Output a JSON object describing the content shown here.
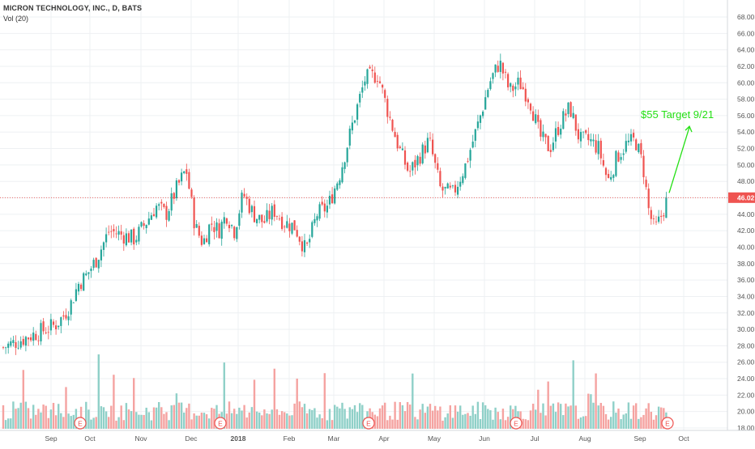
{
  "legend": {
    "title": "MICRON TECHNOLOGY, INC., D, BATS",
    "volume": "Vol (20)"
  },
  "colors": {
    "up": "#26a69a",
    "down": "#ef5350",
    "up_volume": "#8fd0c8",
    "down_volume": "#f5a3a1",
    "annotation": "#24e014",
    "price_line": "#ef5350",
    "grid": "#eef0f3",
    "axis_text": "#555555"
  },
  "chart_data": {
    "type": "candlestick",
    "symbol": "MICRON TECHNOLOGY, INC., D, BATS",
    "indicator": "Vol (20)",
    "x_labels": [
      "Sep",
      "Oct",
      "Nov",
      "Dec",
      "2018",
      "Feb",
      "Mar",
      "Apr",
      "May",
      "Jun",
      "Jul",
      "Aug",
      "Sep",
      "Oct"
    ],
    "y_ticks": [
      "18.00",
      "20.00",
      "22.00",
      "24.00",
      "26.00",
      "28.00",
      "30.00",
      "32.00",
      "34.00",
      "36.00",
      "38.00",
      "40.00",
      "42.00",
      "44.00",
      "46.00",
      "48.00",
      "50.00",
      "52.00",
      "54.00",
      "56.00",
      "58.00",
      "60.00",
      "62.00",
      "64.00",
      "66.00",
      "68.00"
    ],
    "ylim": [
      18,
      68
    ],
    "last_price": "46.02",
    "earnings_marker": "E",
    "earnings_months": [
      "Oct",
      "Dec",
      "Mar",
      "Jun",
      "Sep"
    ],
    "annotation": "$55 Target 9/21",
    "price_path": [
      [
        "Aug",
        27.8
      ],
      [
        "Sep",
        30.5
      ],
      [
        "Sep",
        31.5
      ],
      [
        "Sep",
        33.0
      ],
      [
        "Sep",
        35.5
      ],
      [
        "Sep",
        36.5
      ],
      [
        "Oct",
        38.5
      ],
      [
        "Oct",
        42.0
      ],
      [
        "Oct",
        41.5
      ],
      [
        "Oct",
        41.0
      ],
      [
        "Nov",
        43.0
      ],
      [
        "Nov",
        45.0
      ],
      [
        "Nov",
        44.0
      ],
      [
        "Nov",
        47.0
      ],
      [
        "Nov",
        49.5
      ],
      [
        "Dec",
        42.5
      ],
      [
        "Dec",
        40.5
      ],
      [
        "Dec",
        43.0
      ],
      [
        "Dec",
        42.0
      ],
      [
        "Dec",
        44.0
      ],
      [
        "Dec",
        42.0
      ],
      [
        "2018",
        46.5
      ],
      [
        "2018",
        44.0
      ],
      [
        "2018",
        43.0
      ],
      [
        "2018",
        44.5
      ],
      [
        "2018",
        43.0
      ],
      [
        "Feb",
        42.5
      ],
      [
        "Feb",
        39.5
      ],
      [
        "Feb",
        44.0
      ],
      [
        "Feb",
        45.0
      ],
      [
        "Mar",
        49.0
      ],
      [
        "Mar",
        55.0
      ],
      [
        "Mar",
        60.5
      ],
      [
        "Mar",
        61.0
      ],
      [
        "Apr",
        56.0
      ],
      [
        "Apr",
        52.0
      ],
      [
        "Apr",
        49.0
      ],
      [
        "Apr",
        51.0
      ],
      [
        "Apr",
        53.0
      ],
      [
        "May",
        47.0
      ],
      [
        "May",
        46.5
      ],
      [
        "May",
        50.0
      ],
      [
        "May",
        55.0
      ],
      [
        "Jun",
        60.0
      ],
      [
        "Jun",
        62.5
      ],
      [
        "Jun",
        59.0
      ],
      [
        "Jun",
        60.0
      ],
      [
        "Jun",
        58.0
      ],
      [
        "Jul",
        53.5
      ],
      [
        "Jul",
        52.0
      ],
      [
        "Jul",
        55.0
      ],
      [
        "Jul",
        57.0
      ],
      [
        "Jul",
        53.0
      ],
      [
        "Aug",
        53.0
      ],
      [
        "Aug",
        52.0
      ],
      [
        "Aug",
        48.0
      ],
      [
        "Aug",
        51.0
      ],
      [
        "Aug",
        52.5
      ],
      [
        "Aug",
        53.0
      ],
      [
        "Sep",
        50.0
      ],
      [
        "Sep",
        44.5
      ],
      [
        "Sep",
        42.0
      ],
      [
        "Sep",
        43.5
      ],
      [
        "Sep",
        46.0
      ]
    ]
  }
}
